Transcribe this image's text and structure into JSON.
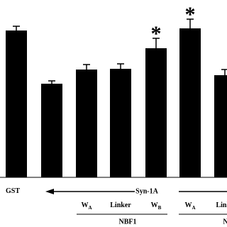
{
  "chart_data": {
    "type": "bar",
    "categories": [
      "GST",
      null,
      "W",
      "Linker",
      "W",
      "W",
      "Linke"
    ],
    "category_subscripts": [
      null,
      null,
      "A",
      null,
      "B",
      "A",
      null
    ],
    "values": [
      207,
      132,
      152,
      153,
      182,
      210,
      144
    ],
    "errors": [
      6,
      4,
      7,
      7,
      14,
      13,
      8
    ],
    "color": "#000000",
    "ylim": [
      0,
      250
    ],
    "arrow_label": "Syn-1A",
    "groups": [
      "NBF1",
      "N"
    ],
    "annotations": [
      "*",
      "*"
    ]
  }
}
